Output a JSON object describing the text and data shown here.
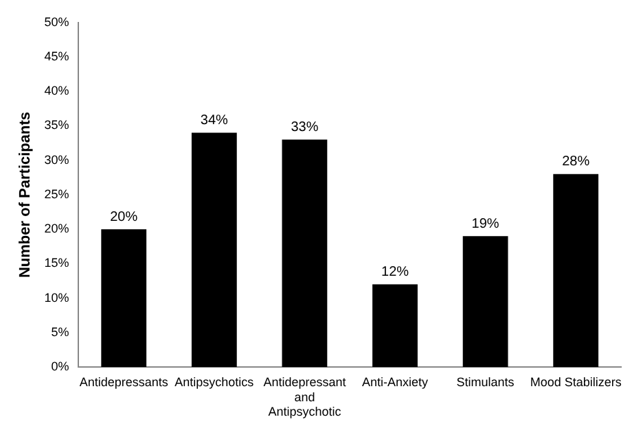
{
  "chart_data": {
    "type": "bar",
    "ylabel": "Number of Participants",
    "categories": [
      "Antidepressants",
      "Antipsychotics",
      "Antidepressant and Antipsychotic",
      "Anti-Anxiety",
      "Stimulants",
      "Mood Stabilizers"
    ],
    "values": [
      20,
      34,
      33,
      12,
      19,
      28
    ],
    "value_labels": [
      "20%",
      "34%",
      "33%",
      "12%",
      "19%",
      "28%"
    ],
    "color": "#000000",
    "ylim": [
      0,
      50
    ],
    "yticks": [
      {
        "value": 0,
        "label": "0%"
      },
      {
        "value": 5,
        "label": "5%"
      },
      {
        "value": 10,
        "label": "10%"
      },
      {
        "value": 15,
        "label": "15%"
      },
      {
        "value": 20,
        "label": "20%"
      },
      {
        "value": 25,
        "label": "25%"
      },
      {
        "value": 30,
        "label": "30%"
      },
      {
        "value": 35,
        "label": "35%"
      },
      {
        "value": 40,
        "label": "40%"
      },
      {
        "value": 45,
        "label": "45%"
      },
      {
        "value": 50,
        "label": "50%"
      }
    ],
    "grid": false,
    "legend": false
  }
}
